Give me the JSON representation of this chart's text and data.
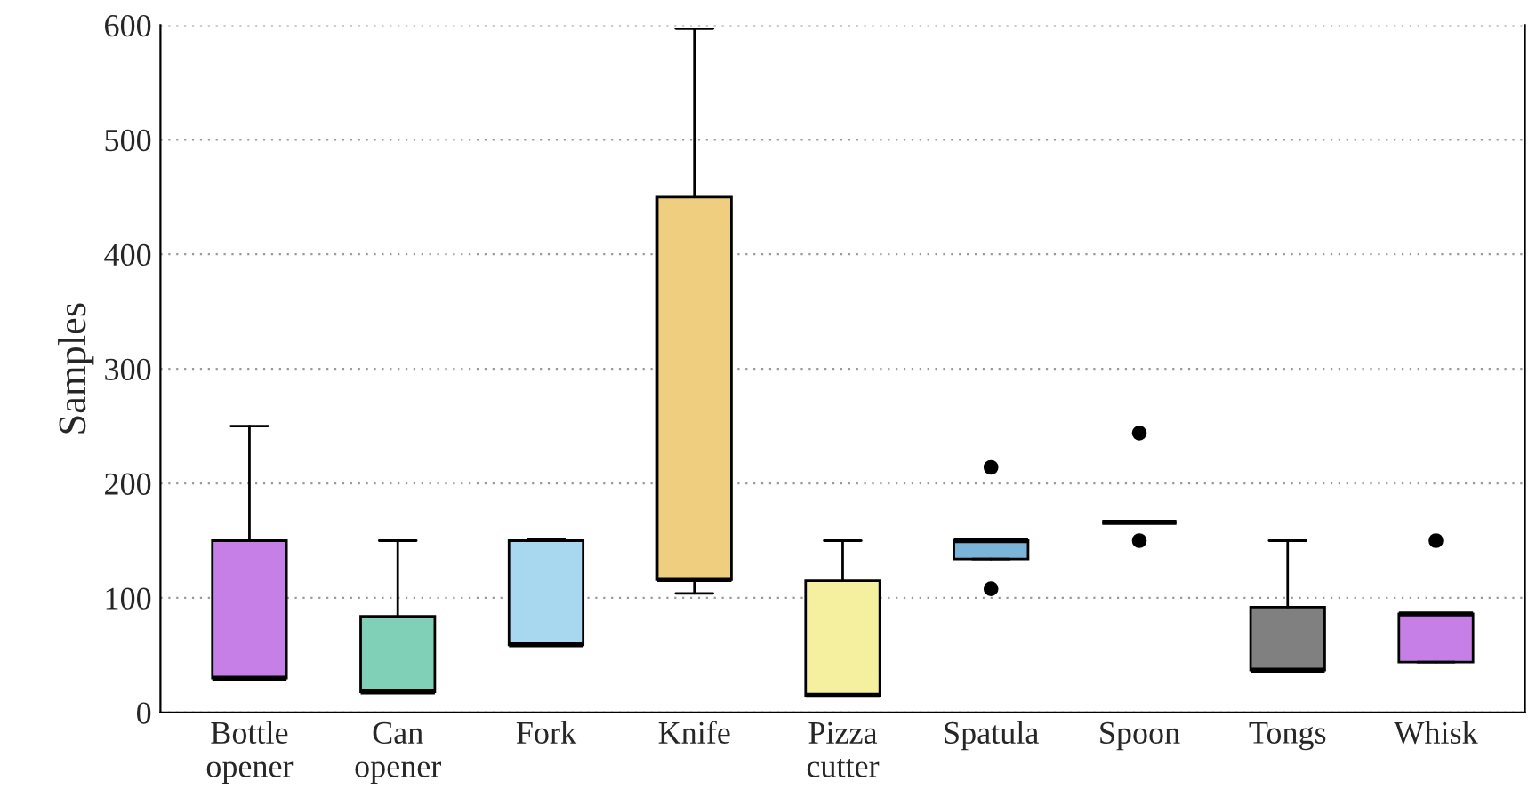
{
  "chart_data": {
    "type": "box",
    "ylabel": "Samples",
    "categories": [
      "Bottle\nopener",
      "Can\nopener",
      "Fork",
      "Knife",
      "Pizza\ncutter",
      "Spatula",
      "Spoon",
      "Tongs",
      "Whisk"
    ],
    "boxes": [
      {
        "low": 30,
        "q1": 30,
        "median": 30,
        "q3": 150,
        "high": 250
      },
      {
        "low": 18,
        "q1": 18,
        "median": 18,
        "q3": 84,
        "high": 150
      },
      {
        "low": 59,
        "q1": 59,
        "median": 59,
        "q3": 150,
        "high": 151
      },
      {
        "low": 104,
        "q1": 116,
        "median": 116,
        "q3": 450,
        "high": 597
      },
      {
        "low": 15,
        "q1": 15,
        "median": 15,
        "q3": 115,
        "high": 150
      },
      {
        "low": 134,
        "q1": 134,
        "median": 150,
        "q3": 150,
        "high": 150,
        "outliers": [
          214,
          108
        ]
      },
      {
        "low": 166,
        "q1": 166,
        "median": 166,
        "q3": 166,
        "high": 166,
        "outliers": [
          244,
          150
        ]
      },
      {
        "low": 37,
        "q1": 37,
        "median": 37,
        "q3": 92,
        "high": 150
      },
      {
        "low": 44,
        "q1": 44,
        "median": 86,
        "q3": 86,
        "high": 86,
        "outliers": [
          150
        ]
      }
    ],
    "colors": [
      "#c77fe8",
      "#80d0b8",
      "#a8d8f0",
      "#f0ce80",
      "#f5f0a0",
      "#7ab4d8",
      null,
      "#808080",
      "#c77fe8"
    ],
    "ylim": [
      0,
      600
    ],
    "yticks": [
      0,
      100,
      200,
      300,
      400,
      500,
      600
    ],
    "grid": "y"
  }
}
